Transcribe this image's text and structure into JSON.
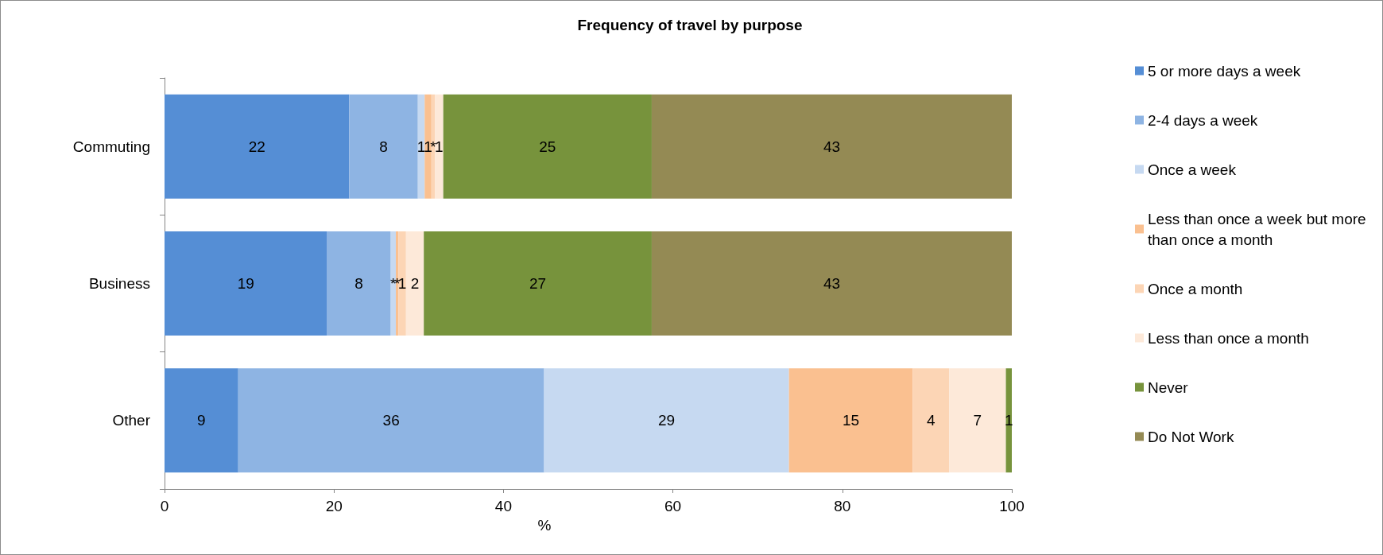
{
  "chart_data": {
    "type": "bar",
    "title": "Frequency of travel by purpose",
    "xlabel": "%",
    "orientation": "horizontal",
    "stacked": true,
    "categories": [
      "Commuting",
      "Business",
      "Other"
    ],
    "series": [
      {
        "name": "5 or more days a week",
        "color": "#558ed5",
        "values": [
          21.8,
          19.2,
          8.7
        ],
        "value_labels": [
          "22",
          "19",
          "9"
        ]
      },
      {
        "name": "2-4 days a week",
        "color": "#8eb4e3",
        "values": [
          8.1,
          7.5,
          36.1
        ],
        "value_labels": [
          "8",
          "8",
          "36"
        ]
      },
      {
        "name": "Once a week",
        "color": "#c6d9f1",
        "values": [
          0.8,
          0.6,
          28.9
        ],
        "value_labels": [
          "1",
          "*",
          "29"
        ]
      },
      {
        "name": "Less than once a week but more than once a month",
        "color": "#fac090",
        "values": [
          0.8,
          0.3,
          14.6
        ],
        "value_labels": [
          "1",
          "*",
          "15"
        ]
      },
      {
        "name": "Once a month",
        "color": "#fcd5b5",
        "values": [
          0.4,
          0.9,
          4.3
        ],
        "value_labels": [
          "*",
          "1",
          "4"
        ]
      },
      {
        "name": "Less than once a month",
        "color": "#fde9d9",
        "values": [
          1.0,
          2.1,
          6.7
        ],
        "value_labels": [
          "1",
          "2",
          "7"
        ]
      },
      {
        "name": "Never",
        "color": "#77933c",
        "values": [
          24.6,
          26.9,
          0.7
        ],
        "value_labels": [
          "25",
          "27",
          "1"
        ]
      },
      {
        "name": "Do Not Work",
        "color": "#948a54",
        "values": [
          42.5,
          42.5,
          null
        ],
        "value_labels": [
          "43",
          "43",
          null
        ]
      }
    ],
    "xlim": [
      0,
      100
    ],
    "xticks": [
      0,
      20,
      40,
      60,
      80,
      100
    ],
    "grid": false,
    "legend": "right"
  }
}
